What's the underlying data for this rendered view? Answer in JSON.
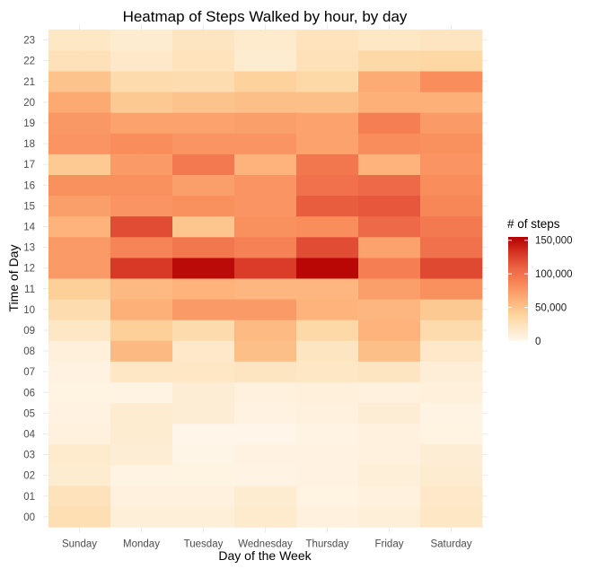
{
  "chart_data": {
    "type": "heatmap",
    "title": "Heatmap of Steps Walked by hour, by day",
    "xlabel": "Day of the Week",
    "ylabel": "Time of Day",
    "x_categories": [
      "Sunday",
      "Monday",
      "Tuesday",
      "Wednesday",
      "Thursday",
      "Friday",
      "Saturday"
    ],
    "y_categories": [
      "00",
      "01",
      "02",
      "03",
      "04",
      "05",
      "06",
      "07",
      "08",
      "09",
      "10",
      "11",
      "12",
      "13",
      "14",
      "15",
      "16",
      "17",
      "18",
      "19",
      "20",
      "21",
      "22",
      "23"
    ],
    "values": [
      [
        28000,
        10000,
        10000,
        16000,
        8000,
        10000,
        20000
      ],
      [
        25000,
        8000,
        7000,
        14000,
        5000,
        7000,
        18000
      ],
      [
        14000,
        4000,
        5000,
        4000,
        6000,
        10000,
        14000
      ],
      [
        16000,
        12000,
        3000,
        6000,
        6000,
        8000,
        12000
      ],
      [
        7000,
        14000,
        2000,
        2000,
        4000,
        7000,
        5000
      ],
      [
        6000,
        14000,
        12000,
        6000,
        8000,
        12000,
        4000
      ],
      [
        5000,
        4000,
        12000,
        7000,
        9000,
        8000,
        9000
      ],
      [
        6000,
        20000,
        20000,
        22000,
        20000,
        22000,
        11000
      ],
      [
        9000,
        56000,
        18000,
        52000,
        22000,
        52000,
        18000
      ],
      [
        20000,
        42000,
        32000,
        55000,
        34000,
        60000,
        32000
      ],
      [
        30000,
        62000,
        75000,
        74000,
        60000,
        58000,
        46000
      ],
      [
        42000,
        56000,
        60000,
        58000,
        58000,
        72000,
        80000
      ],
      [
        75000,
        130000,
        150000,
        128000,
        152000,
        92000,
        122000
      ],
      [
        75000,
        88000,
        96000,
        90000,
        120000,
        70000,
        100000
      ],
      [
        60000,
        120000,
        48000,
        80000,
        82000,
        105000,
        95000
      ],
      [
        72000,
        78000,
        80000,
        78000,
        112000,
        115000,
        86000
      ],
      [
        80000,
        80000,
        72000,
        78000,
        100000,
        105000,
        82000
      ],
      [
        45000,
        75000,
        94000,
        60000,
        96000,
        60000,
        78000
      ],
      [
        78000,
        82000,
        78000,
        78000,
        70000,
        82000,
        80000
      ],
      [
        76000,
        70000,
        70000,
        72000,
        70000,
        92000,
        75000
      ],
      [
        66000,
        46000,
        50000,
        52000,
        52000,
        62000,
        62000
      ],
      [
        50000,
        32000,
        30000,
        40000,
        34000,
        65000,
        82000
      ],
      [
        26000,
        18000,
        24000,
        14000,
        26000,
        34000,
        36000
      ],
      [
        20000,
        14000,
        22000,
        16000,
        24000,
        20000,
        22000
      ]
    ],
    "color_scale": {
      "title": "# of steps",
      "min": 0,
      "max": 155000,
      "ticks": [
        0,
        50000,
        100000,
        150000
      ],
      "tick_labels": [
        "0",
        "50,000",
        "100,000",
        "150,000"
      ],
      "low_color": "#fff7ec",
      "high_color": "#b30000"
    },
    "grid": true,
    "legend_position": "right"
  }
}
